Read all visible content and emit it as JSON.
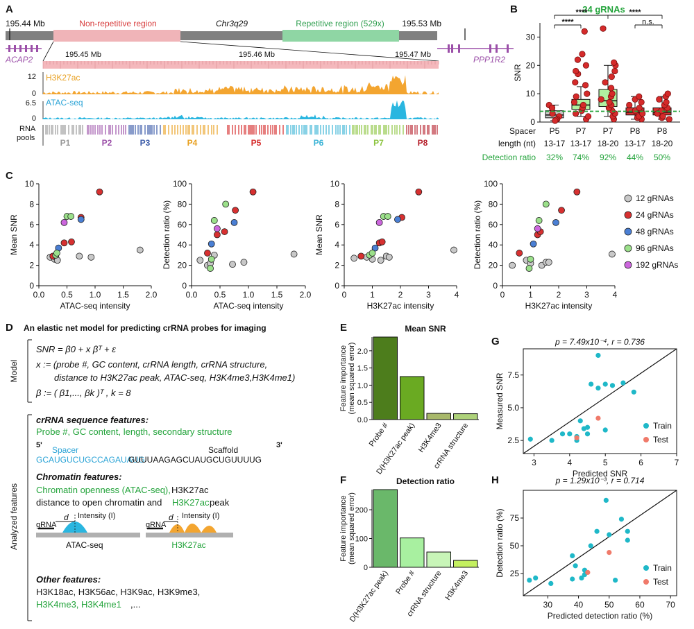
{
  "panels": {
    "a": {
      "letter": "A",
      "chrom_label": "Chr3q29",
      "left_coord": "195.44 Mb",
      "right_coord": "195.53 Mb",
      "nonrep_label": "Non-repetitive region",
      "rep_label": "Repetitive region (529x)",
      "gene_left": "ACAP2",
      "gene_right": "PPP1R2",
      "zoom_ticks": [
        "195.45 Mb",
        "195.46 Mb",
        "195.47 Mb"
      ],
      "h3k27ac_label": "H3K27ac",
      "h3k27ac_max": "12",
      "h3k27ac_min": "0",
      "atac_label": "ATAC-seq",
      "atac_max": "6.5",
      "atac_min": "0",
      "rna_pools_label": "RNA pools",
      "pools": [
        {
          "name": "P1",
          "color": "#999999"
        },
        {
          "name": "P2",
          "color": "#9b4fa8"
        },
        {
          "name": "P3",
          "color": "#3b5ba8"
        },
        {
          "name": "P4",
          "color": "#e8a020"
        },
        {
          "name": "P5",
          "color": "#d52a2a"
        },
        {
          "name": "P6",
          "color": "#3bb3d6"
        },
        {
          "name": "P7",
          "color": "#8cc43f"
        },
        {
          "name": "P8",
          "color": "#b51f2a"
        }
      ]
    },
    "b": {
      "letter": "B",
      "title": "24 gRNAs",
      "ylabel": "SNR",
      "yticks": [
        "0",
        "10",
        "20",
        "30"
      ],
      "sig": [
        "****",
        "****",
        "****",
        "n.s."
      ],
      "row1_label": "Spacer",
      "row2_label": "length (nt)",
      "row3_label": "Detection ratio",
      "groups": [
        {
          "pool": "P5",
          "length": "13-17",
          "ratio": "32%"
        },
        {
          "pool": "P7",
          "length": "13-17",
          "ratio": "74%"
        },
        {
          "pool": "P7",
          "length": "18-20",
          "ratio": "92%"
        },
        {
          "pool": "P8",
          "length": "13-17",
          "ratio": "44%"
        },
        {
          "pool": "P8",
          "length": "18-20",
          "ratio": "50%"
        }
      ]
    },
    "c": {
      "letter": "C",
      "legend": [
        {
          "label": "12 gRNAs",
          "color": "#c8c8c8"
        },
        {
          "label": "24 gRNAs",
          "color": "#d73030"
        },
        {
          "label": "48 gRNAs",
          "color": "#4a7fd4"
        },
        {
          "label": "96 gRNAs",
          "color": "#9be08a"
        },
        {
          "label": "192 gRNAs",
          "color": "#cc66dd"
        }
      ]
    },
    "d": {
      "letter": "D",
      "title": "An elastic net model for predicting crRNA probes for imaging",
      "model_label": "Model",
      "analyzed_label": "Analyzed features",
      "eq1": "SNR = β0 + x βᵀ + ε",
      "eq2": "x := (probe #, GC content, crRNA length, crRNA structure,",
      "eq3": "distance to H3K27ac peak, ATAC-seq, H3K4me3,H3K4me1)",
      "eq4": "β := ( β1,..., βk )ᵀ ,  k = 8",
      "seq_heading": "crRNA sequence features:",
      "seq_features": "Probe #, GC content, length, secondary structure",
      "five_prime": "5'",
      "three_prime": "3'",
      "spacer_label": "Spacer",
      "scaffold_label": "Scaffold",
      "spacer_seq": "GCAUGUCUGCCAGAUAUG",
      "scaffold_seq": "GUUUAAGAGCUAUGCUGUUUUG",
      "chrom_heading": "Chromatin features:",
      "chrom_line1_green": "Chromatin openness (ATAC-seq),",
      "chrom_line1_black": " H3K27ac",
      "chrom_line2_black": "distance to open chromatin and ",
      "chrom_line2_green": "H3K27ac",
      "chrom_line2_end": " peak",
      "grna": "gRNA",
      "d_label": "d",
      "intensity": "Intensity (I)",
      "atac_caption": "ATAC-seq",
      "h3_caption": "H3K27ac",
      "other_heading": "Other features:",
      "other_line1": "H3K18ac, H3K56ac, H3K9ac, H3K9me3,",
      "other_line2_green": "H3K4me3, H3K4me1",
      "other_line2_end": ",..."
    },
    "e": {
      "letter": "E",
      "title": "Mean SNR",
      "ylabel1": "Feature importance",
      "ylabel2": "(mean squared error)",
      "yticks": [
        "0.0",
        "0.5",
        "1.0",
        "1.5",
        "2.0"
      ]
    },
    "f": {
      "letter": "F",
      "title": "Detection ratio",
      "ylabel1": "Feature importance",
      "ylabel2": "(mean squared error)",
      "yticks": [
        "0",
        "100",
        "200"
      ]
    },
    "g": {
      "letter": "G",
      "stat": "p = 7.49x10⁻⁴, r = 0.736",
      "xlabel": "Predicted SNR",
      "ylabel": "Measured SNR",
      "train": "Train",
      "test": "Test"
    },
    "h": {
      "letter": "H",
      "stat": "p = 1.29x10⁻³, r = 0.714",
      "xlabel": "Predicted detection ratio (%)",
      "ylabel": "Detection ratio (%)",
      "train": "Train",
      "test": "Test"
    }
  },
  "chart_data": [
    {
      "id": "B",
      "type": "box",
      "title": "24 gRNAs",
      "ylabel": "SNR",
      "ylim": [
        0,
        35
      ],
      "categories": [
        "P5 13-17",
        "P7 13-17",
        "P7 18-20",
        "P8 13-17",
        "P8 18-20"
      ],
      "colors": [
        "#c8c8c8",
        "#b0f0a0",
        "#b0f0a0",
        "#d73030",
        "#d73030"
      ],
      "boxes": [
        {
          "q1": 1.5,
          "median": 2.5,
          "q3": 4.0,
          "low": 0.5,
          "high": 6.0
        },
        {
          "q1": 4.5,
          "median": 6.0,
          "q3": 8.0,
          "low": 2.0,
          "high": 12.5
        },
        {
          "q1": 5.5,
          "median": 7.5,
          "q3": 11.5,
          "low": 2.0,
          "high": 20.0
        },
        {
          "q1": 2.5,
          "median": 3.5,
          "q3": 5.0,
          "low": 1.0,
          "high": 9.0
        },
        {
          "q1": 2.5,
          "median": 3.5,
          "q3": 5.0,
          "low": 1.0,
          "high": 9.0
        }
      ],
      "points": [
        [
          2,
          6,
          3,
          5,
          1,
          0.8,
          0.5
        ],
        [
          1,
          2,
          3,
          4,
          5,
          6,
          7,
          9,
          10,
          13,
          14,
          17,
          18,
          20,
          22,
          24,
          32
        ],
        [
          1,
          2,
          3,
          4,
          5,
          6,
          7,
          8,
          9,
          10,
          12,
          14,
          16,
          18,
          20,
          21,
          33
        ],
        [
          1,
          1.5,
          2,
          3,
          4,
          5,
          6,
          7,
          8,
          9
        ],
        [
          1,
          1.5,
          2,
          3,
          4,
          5,
          6,
          7,
          8,
          9,
          10
        ]
      ],
      "dashed_line": 3.8
    },
    {
      "id": "C1",
      "type": "scatter",
      "xlabel": "ATAC-seq intensity",
      "ylabel": "Mean SNR",
      "xlim": [
        0,
        2.0
      ],
      "ylim": [
        0,
        10
      ],
      "xticks": [
        "0.0",
        "0.5",
        "1.0",
        "1.5",
        "2.0"
      ],
      "yticks": [
        "0",
        "2",
        "4",
        "6",
        "8",
        "10"
      ],
      "points": [
        {
          "x": 0.2,
          "y": 2.8,
          "g": 0
        },
        {
          "x": 0.28,
          "y": 2.6,
          "g": 0
        },
        {
          "x": 0.3,
          "y": 2.8,
          "g": 0
        },
        {
          "x": 0.33,
          "y": 2.5,
          "g": 0
        },
        {
          "x": 0.72,
          "y": 2.9,
          "g": 0
        },
        {
          "x": 0.93,
          "y": 2.8,
          "g": 0
        },
        {
          "x": 1.8,
          "y": 3.5,
          "g": 0
        },
        {
          "x": 0.25,
          "y": 2.9,
          "g": 1
        },
        {
          "x": 0.45,
          "y": 4.2,
          "g": 1
        },
        {
          "x": 0.58,
          "y": 4.3,
          "g": 1
        },
        {
          "x": 0.75,
          "y": 6.7,
          "g": 1
        },
        {
          "x": 1.08,
          "y": 9.2,
          "g": 1
        },
        {
          "x": 0.35,
          "y": 3.7,
          "g": 2
        },
        {
          "x": 0.75,
          "y": 6.5,
          "g": 2
        },
        {
          "x": 0.3,
          "y": 3.0,
          "g": 3
        },
        {
          "x": 0.32,
          "y": 3.2,
          "g": 3
        },
        {
          "x": 0.5,
          "y": 6.8,
          "g": 3
        },
        {
          "x": 0.57,
          "y": 6.8,
          "g": 3
        },
        {
          "x": 0.45,
          "y": 6.2,
          "g": 4
        }
      ]
    },
    {
      "id": "C2",
      "type": "scatter",
      "xlabel": "ATAC-seq intensity",
      "ylabel": "Detection ratio (%)",
      "xlim": [
        0,
        2.0
      ],
      "ylim": [
        0,
        100
      ],
      "xticks": [
        "0.0",
        "0.5",
        "1.0",
        "1.5",
        "2.0"
      ],
      "yticks": [
        "0",
        "20",
        "40",
        "60",
        "80",
        "100"
      ],
      "points": [
        {
          "x": 0.15,
          "y": 25,
          "g": 0
        },
        {
          "x": 0.28,
          "y": 20,
          "g": 0
        },
        {
          "x": 0.33,
          "y": 22,
          "g": 0
        },
        {
          "x": 0.72,
          "y": 21,
          "g": 0
        },
        {
          "x": 0.92,
          "y": 23,
          "g": 0
        },
        {
          "x": 1.8,
          "y": 31,
          "g": 0
        },
        {
          "x": 0.4,
          "y": 30,
          "g": 0
        },
        {
          "x": 0.28,
          "y": 32,
          "g": 1
        },
        {
          "x": 0.45,
          "y": 50,
          "g": 1
        },
        {
          "x": 0.58,
          "y": 53,
          "g": 1
        },
        {
          "x": 0.77,
          "y": 74,
          "g": 1
        },
        {
          "x": 1.08,
          "y": 92,
          "g": 1
        },
        {
          "x": 0.35,
          "y": 41,
          "g": 2
        },
        {
          "x": 0.75,
          "y": 62,
          "g": 2
        },
        {
          "x": 0.33,
          "y": 17,
          "g": 3
        },
        {
          "x": 0.4,
          "y": 64,
          "g": 3
        },
        {
          "x": 0.6,
          "y": 80,
          "g": 3
        },
        {
          "x": 0.35,
          "y": 26,
          "g": 3
        },
        {
          "x": 0.45,
          "y": 56,
          "g": 4
        }
      ]
    },
    {
      "id": "C3",
      "type": "scatter",
      "xlabel": "H3K27ac intensity",
      "ylabel": "Mean SNR",
      "xlim": [
        0,
        4
      ],
      "ylim": [
        0,
        10
      ],
      "xticks": [
        "0",
        "1",
        "2",
        "3",
        "4"
      ],
      "yticks": [
        "0",
        "2",
        "4",
        "6",
        "8",
        "10"
      ],
      "points": [
        {
          "x": 0.35,
          "y": 2.7,
          "g": 0
        },
        {
          "x": 0.8,
          "y": 2.8,
          "g": 0
        },
        {
          "x": 1.0,
          "y": 2.6,
          "g": 0
        },
        {
          "x": 1.3,
          "y": 2.5,
          "g": 0
        },
        {
          "x": 1.5,
          "y": 2.9,
          "g": 0
        },
        {
          "x": 1.6,
          "y": 2.8,
          "g": 0
        },
        {
          "x": 3.9,
          "y": 3.5,
          "g": 0
        },
        {
          "x": 0.6,
          "y": 2.9,
          "g": 1
        },
        {
          "x": 1.25,
          "y": 4.2,
          "g": 1
        },
        {
          "x": 1.35,
          "y": 4.3,
          "g": 1
        },
        {
          "x": 2.05,
          "y": 6.7,
          "g": 1
        },
        {
          "x": 2.65,
          "y": 9.2,
          "g": 1
        },
        {
          "x": 1.1,
          "y": 3.7,
          "g": 2
        },
        {
          "x": 1.9,
          "y": 6.5,
          "g": 2
        },
        {
          "x": 0.9,
          "y": 3.0,
          "g": 3
        },
        {
          "x": 1.0,
          "y": 3.2,
          "g": 3
        },
        {
          "x": 1.4,
          "y": 6.8,
          "g": 3
        },
        {
          "x": 1.55,
          "y": 6.8,
          "g": 3
        },
        {
          "x": 1.25,
          "y": 6.2,
          "g": 4
        }
      ]
    },
    {
      "id": "C4",
      "type": "scatter",
      "xlabel": "H3K27ac intensity",
      "ylabel": "Detection ratio (%)",
      "xlim": [
        0,
        4
      ],
      "ylim": [
        0,
        100
      ],
      "xticks": [
        "0",
        "1",
        "2",
        "3",
        "4"
      ],
      "yticks": [
        "0",
        "20",
        "40",
        "60",
        "80",
        "100"
      ],
      "points": [
        {
          "x": 0.35,
          "y": 20,
          "g": 0
        },
        {
          "x": 0.85,
          "y": 25,
          "g": 0
        },
        {
          "x": 1.0,
          "y": 22,
          "g": 0
        },
        {
          "x": 1.4,
          "y": 20,
          "g": 0
        },
        {
          "x": 1.55,
          "y": 23,
          "g": 0
        },
        {
          "x": 1.65,
          "y": 23,
          "g": 0
        },
        {
          "x": 3.9,
          "y": 31,
          "g": 0
        },
        {
          "x": 0.6,
          "y": 32,
          "g": 1
        },
        {
          "x": 1.25,
          "y": 50,
          "g": 1
        },
        {
          "x": 1.35,
          "y": 53,
          "g": 1
        },
        {
          "x": 2.1,
          "y": 74,
          "g": 1
        },
        {
          "x": 2.65,
          "y": 92,
          "g": 1
        },
        {
          "x": 1.1,
          "y": 41,
          "g": 2
        },
        {
          "x": 1.9,
          "y": 62,
          "g": 2
        },
        {
          "x": 0.95,
          "y": 17,
          "g": 3
        },
        {
          "x": 1.3,
          "y": 64,
          "g": 3
        },
        {
          "x": 1.55,
          "y": 80,
          "g": 3
        },
        {
          "x": 1.0,
          "y": 26,
          "g": 3
        },
        {
          "x": 1.25,
          "y": 56,
          "g": 4
        }
      ]
    },
    {
      "id": "E",
      "type": "bar",
      "title": "Mean SNR",
      "ylabel": "Feature importance (mean squared error)",
      "ylim": [
        0,
        2.4
      ],
      "categories": [
        "Probe #",
        "D(H3K27ac peak)",
        "H3K4me3",
        "crRNA structure"
      ],
      "values": [
        2.4,
        1.25,
        0.18,
        0.17
      ],
      "colors": [
        "#4d7d1c",
        "#6aaa22",
        "#a8b86a",
        "#aed27a"
      ]
    },
    {
      "id": "F",
      "type": "bar",
      "title": "Detection ratio",
      "ylabel": "Feature importance (mean squared error)",
      "ylim": [
        0,
        270
      ],
      "categories": [
        "D(H3K27ac peak)",
        "Probe #",
        "crRNA structure",
        "H3K4me3"
      ],
      "values": [
        270,
        102,
        53,
        24
      ],
      "colors": [
        "#6ab86a",
        "#a8f0a0",
        "#c8f5b8",
        "#c4f060"
      ]
    },
    {
      "id": "G",
      "type": "scatter",
      "xlabel": "Predicted SNR",
      "ylabel": "Measured SNR",
      "xlim": [
        2.7,
        7
      ],
      "ylim": [
        1.5,
        9.5
      ],
      "xticks": [
        "3",
        "4",
        "5",
        "6",
        "7"
      ],
      "yticks": [
        "2.5",
        "5.0",
        "7.5"
      ],
      "diag_line": [
        [
          2.7,
          1.5
        ],
        [
          7,
          9.5
        ]
      ],
      "train": [
        [
          2.9,
          2.6
        ],
        [
          3.5,
          2.5
        ],
        [
          3.8,
          3.0
        ],
        [
          4.0,
          3.0
        ],
        [
          4.2,
          2.8
        ],
        [
          4.3,
          4.0
        ],
        [
          4.4,
          3.4
        ],
        [
          4.5,
          3.0
        ],
        [
          4.6,
          6.8
        ],
        [
          4.8,
          6.5
        ],
        [
          5.0,
          6.8
        ],
        [
          5.2,
          6.7
        ],
        [
          5.5,
          6.9
        ],
        [
          5.8,
          6.2
        ],
        [
          4.5,
          3.5
        ],
        [
          4.8,
          9.0
        ],
        [
          4.2,
          2.5
        ],
        [
          5.0,
          3.3
        ]
      ],
      "test": [
        [
          4.2,
          2.7
        ],
        [
          4.8,
          4.2
        ]
      ]
    },
    {
      "id": "H",
      "type": "scatter",
      "xlabel": "Predicted detection ratio (%)",
      "ylabel": "Detection ratio (%)",
      "xlim": [
        22,
        72
      ],
      "ylim": [
        5,
        100
      ],
      "xticks": [
        "30",
        "40",
        "50",
        "60",
        "70"
      ],
      "yticks": [
        "25",
        "50",
        "75"
      ],
      "diag_line": [
        [
          22,
          5
        ],
        [
          72,
          100
        ]
      ],
      "train": [
        [
          24,
          19
        ],
        [
          26,
          21
        ],
        [
          31,
          16
        ],
        [
          38,
          41
        ],
        [
          39,
          32
        ],
        [
          41,
          21
        ],
        [
          42,
          24
        ],
        [
          42,
          28
        ],
        [
          44,
          50
        ],
        [
          46,
          63
        ],
        [
          49,
          91
        ],
        [
          52,
          19
        ],
        [
          54,
          74
        ],
        [
          56,
          55
        ],
        [
          56,
          63
        ],
        [
          50,
          60
        ],
        [
          38,
          20
        ]
      ],
      "test": [
        [
          43,
          26
        ],
        [
          50,
          44
        ]
      ]
    }
  ]
}
